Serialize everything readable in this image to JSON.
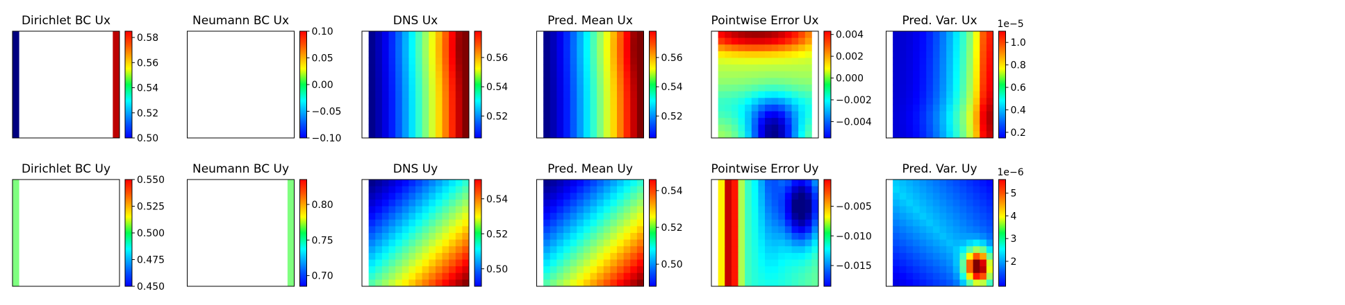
{
  "figure": {
    "chart_data": [
      {
        "type": "heatmap",
        "title": "Dirichlet BC Ux",
        "pattern": "edges",
        "left_value": 0.5,
        "right_value": 0.58,
        "colorbar": {
          "ticks": [
            "0.50",
            "0.52",
            "0.54",
            "0.56",
            "0.58"
          ],
          "range": [
            0.5,
            0.585
          ],
          "offset_label": ""
        }
      },
      {
        "type": "heatmap",
        "title": "Neumann BC Ux",
        "pattern": "empty",
        "colorbar": {
          "ticks": [
            "−0.10",
            "−0.05",
            "0.00",
            "0.05",
            "0.10"
          ],
          "range": [
            -0.1,
            0.1
          ],
          "offset_label": ""
        }
      },
      {
        "type": "heatmap",
        "title": "DNS Ux",
        "pattern": "xgrad",
        "colorbar": {
          "ticks": [
            "0.52",
            "0.54",
            "0.56"
          ],
          "range": [
            0.505,
            0.578
          ],
          "offset_label": ""
        }
      },
      {
        "type": "heatmap",
        "title": "Pred. Mean Ux",
        "pattern": "xgrad",
        "colorbar": {
          "ticks": [
            "0.52",
            "0.54",
            "0.56"
          ],
          "range": [
            0.505,
            0.578
          ],
          "offset_label": ""
        }
      },
      {
        "type": "heatmap",
        "title": "Pointwise Error Ux",
        "pattern": "errUx",
        "colorbar": {
          "ticks": [
            "0.004",
            "0.002",
            "0.000",
            "−0.002",
            "−0.004"
          ],
          "range": [
            -0.0055,
            0.0043
          ],
          "offset_label": ""
        }
      },
      {
        "type": "heatmap",
        "title": "Pred. Var. Ux",
        "pattern": "varUx",
        "colorbar": {
          "ticks": [
            "1.0",
            "0.8",
            "0.6",
            "0.4",
            "0.2"
          ],
          "range": [
            0.15,
            1.1
          ],
          "offset_label": "1e−5"
        }
      },
      {
        "type": "heatmap",
        "title": "Dirichlet BC Uy",
        "pattern": "leftedge",
        "left_value": 0.5,
        "colorbar": {
          "ticks": [
            "0.550",
            "0.525",
            "0.500",
            "0.475",
            "0.450"
          ],
          "range": [
            0.45,
            0.55
          ],
          "offset_label": ""
        }
      },
      {
        "type": "heatmap",
        "title": "Neumann BC Uy",
        "pattern": "rightedge",
        "right_value": 0.76,
        "colorbar": {
          "ticks": [
            "0.80",
            "0.75",
            "0.70"
          ],
          "range": [
            0.685,
            0.835
          ],
          "offset_label": ""
        }
      },
      {
        "type": "heatmap",
        "title": "DNS Uy",
        "pattern": "diag",
        "colorbar": {
          "ticks": [
            "0.54",
            "0.52",
            "0.50"
          ],
          "range": [
            0.49,
            0.551
          ],
          "offset_label": ""
        }
      },
      {
        "type": "heatmap",
        "title": "Pred. Mean Uy",
        "pattern": "diag",
        "colorbar": {
          "ticks": [
            "0.54",
            "0.52",
            "0.50"
          ],
          "range": [
            0.488,
            0.546
          ],
          "offset_label": ""
        }
      },
      {
        "type": "heatmap",
        "title": "Pointwise Error Uy",
        "pattern": "errUy",
        "colorbar": {
          "ticks": [
            "−0.005",
            "−0.010",
            "−0.015"
          ],
          "range": [
            -0.0185,
            -0.0005
          ],
          "offset_label": ""
        }
      },
      {
        "type": "heatmap",
        "title": "Pred. Var. Uy",
        "pattern": "varUy",
        "colorbar": {
          "ticks": [
            "5",
            "4",
            "3",
            "2"
          ],
          "range": [
            0.9,
            5.6
          ],
          "offset_label": "1e−6"
        }
      }
    ]
  }
}
